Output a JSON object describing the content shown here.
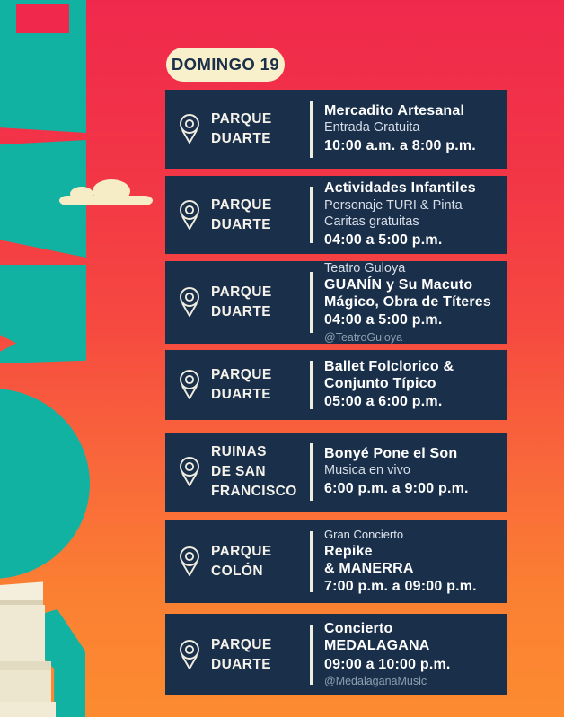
{
  "badge": {
    "label": "DOMINGO 19"
  },
  "colors": {
    "gradient_top": "#F0294C",
    "gradient_bottom": "#FC8B30",
    "teal_accent": "#12B2A2",
    "card_navy": "#1A2F4A",
    "cream": "#F8EFCB",
    "title_white": "#FFFFFF",
    "muted_text": "#D7DEE7",
    "handle_gray": "#8DA0B0"
  },
  "icons": {
    "location_pin": "map-pin-icon",
    "cloud": "cloud-icon"
  },
  "cards": [
    {
      "location": [
        "PARQUE",
        "DUARTE"
      ],
      "lines": [
        {
          "style": "title",
          "text": "Mercadito Artesanal"
        },
        {
          "style": "text",
          "text": "Entrada Gratuita"
        },
        {
          "style": "time",
          "text": "10:00 a.m. a 8:00 p.m."
        }
      ]
    },
    {
      "location": [
        "PARQUE",
        "DUARTE"
      ],
      "lines": [
        {
          "style": "title",
          "text": "Actividades Infantiles"
        },
        {
          "style": "text",
          "text": "Personaje TURI & Pinta Caritas gratuitas"
        },
        {
          "style": "time",
          "text": "04:00 a 5:00 p.m."
        }
      ]
    },
    {
      "location": [
        "PARQUE",
        "DUARTE"
      ],
      "lines": [
        {
          "style": "text",
          "text": "Teatro Guloya"
        },
        {
          "style": "title",
          "text": "GUANÍN y Su Macuto Mágico, Obra de Títeres"
        },
        {
          "style": "time",
          "text": "04:00 a 5:00 p.m."
        },
        {
          "style": "handle",
          "text": "@TeatroGuloya"
        }
      ]
    },
    {
      "location": [
        "PARQUE",
        "DUARTE"
      ],
      "lines": [
        {
          "style": "title",
          "text": "Ballet Folclorico & Conjunto Típico"
        },
        {
          "style": "time",
          "text": "05:00 a 6:00 p.m."
        }
      ]
    },
    {
      "location": [
        "RUINAS",
        "DE SAN",
        "FRANCISCO"
      ],
      "lines": [
        {
          "style": "title",
          "text": "Bonyé Pone el Son"
        },
        {
          "style": "text",
          "text": "Musica en vivo"
        },
        {
          "style": "time",
          "text": "6:00 p.m. a 9:00 p.m."
        }
      ]
    },
    {
      "location": [
        "PARQUE",
        "COLÓN"
      ],
      "lines": [
        {
          "style": "small",
          "text": "Gran Concierto"
        },
        {
          "style": "title",
          "text": "Repike"
        },
        {
          "style": "title",
          "text": "& MANERRA"
        },
        {
          "style": "time",
          "text": "7:00 p.m. a 09:00 p.m."
        }
      ]
    },
    {
      "location": [
        "PARQUE",
        "DUARTE"
      ],
      "lines": [
        {
          "style": "title",
          "text": "Concierto"
        },
        {
          "style": "title",
          "text": "MEDALAGANA"
        },
        {
          "style": "time",
          "text": "09:00 a 10:00 p.m."
        },
        {
          "style": "handle",
          "text": "@MedalaganaMusic"
        }
      ]
    }
  ]
}
